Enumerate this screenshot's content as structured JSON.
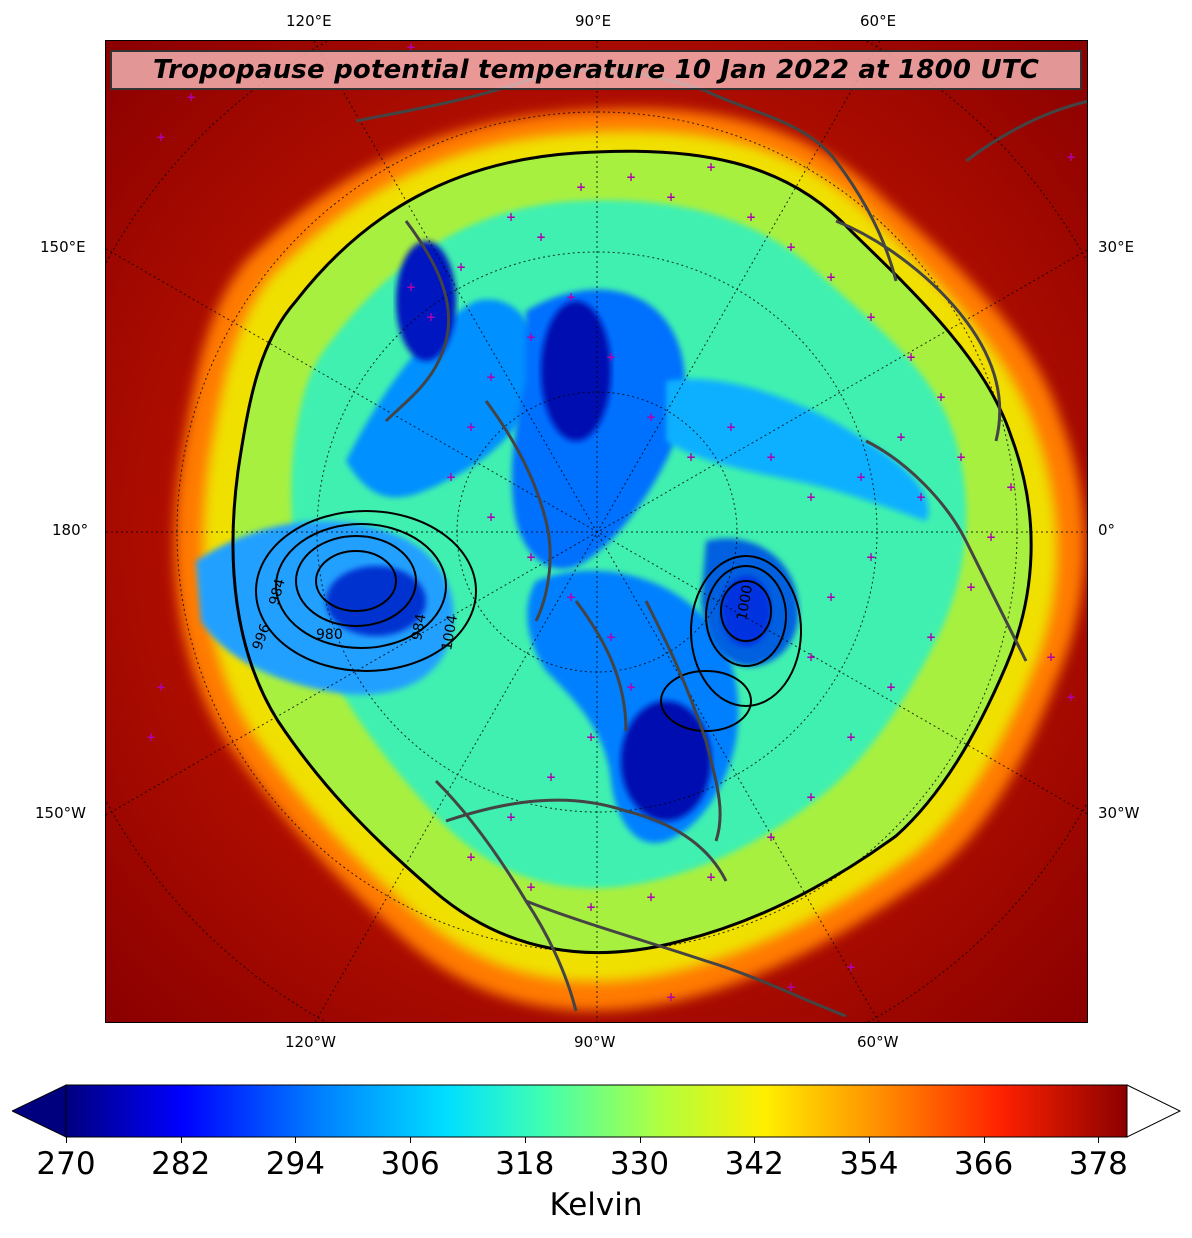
{
  "title": "Tropopause potential temperature 10 Jan 2022 at 1800 UTC",
  "top_longitude_labels": [
    "120°E",
    "90°E",
    "60°E"
  ],
  "bottom_longitude_labels": [
    "120°W",
    "90°W",
    "60°W"
  ],
  "left_longitude_labels": [
    "150°E",
    "180°",
    "150°W"
  ],
  "right_longitude_labels": [
    "30°E",
    "0°",
    "30°W"
  ],
  "pressure_contour_labels": [
    "984",
    "980",
    "996",
    "984",
    "1004",
    "1000"
  ],
  "colorbar": {
    "ticks": [
      "270",
      "282",
      "294",
      "306",
      "318",
      "330",
      "342",
      "354",
      "366",
      "378"
    ],
    "label": "Kelvin",
    "min": 270,
    "max": 381,
    "extend": "both",
    "colors": [
      "#00007f",
      "#0000ff",
      "#0080ff",
      "#00e0ff",
      "#40ffb0",
      "#b0ff40",
      "#ffee00",
      "#ff8c00",
      "#ff2200",
      "#8b0000"
    ]
  },
  "colors": {
    "warm_background": "#8b0000",
    "station_marker": "#b000b0",
    "coastline": "#444444"
  }
}
